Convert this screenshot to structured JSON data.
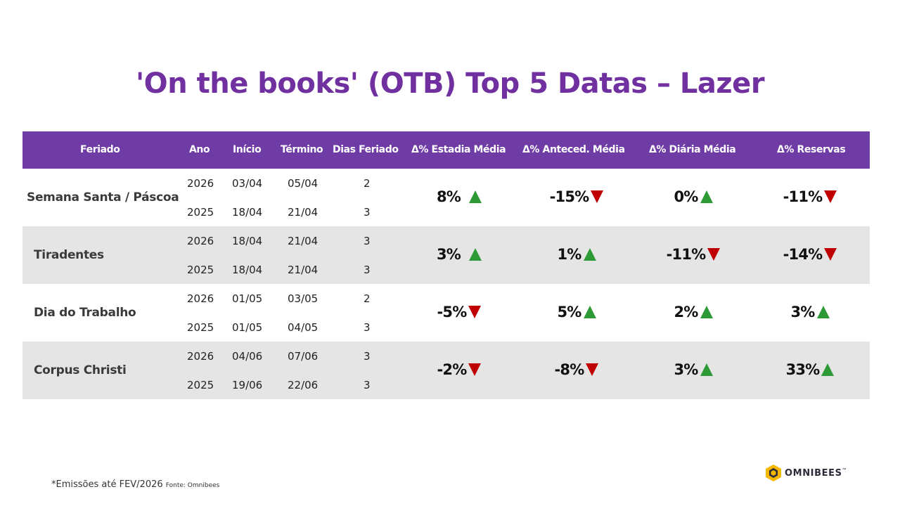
{
  "title": "'On the books' (OTB) Top 5 Datas – Lazer",
  "table": {
    "headers": [
      "Feriado",
      "Ano",
      "Início",
      "Término",
      "Dias Feriado",
      "Δ% Estadia Média",
      "Δ%  Anteced. Média",
      "Δ% Diária Média",
      "Δ% Reservas"
    ],
    "rows": [
      {
        "feriado": "Semana Santa / Páscoa",
        "years": [
          {
            "ano": "2026",
            "inicio": "03/04",
            "termino": "05/04",
            "dias": "2"
          },
          {
            "ano": "2025",
            "inicio": "18/04",
            "termino": "21/04",
            "dias": "3"
          }
        ],
        "deltas": [
          {
            "value": "8%",
            "trend": "up"
          },
          {
            "value": "-15%",
            "trend": "down"
          },
          {
            "value": "0%",
            "trend": "up"
          },
          {
            "value": "-11%",
            "trend": "down"
          }
        ]
      },
      {
        "feriado": "Tiradentes",
        "years": [
          {
            "ano": "2026",
            "inicio": "18/04",
            "termino": "21/04",
            "dias": "3"
          },
          {
            "ano": "2025",
            "inicio": "18/04",
            "termino": "21/04",
            "dias": "3"
          }
        ],
        "deltas": [
          {
            "value": "3%",
            "trend": "up"
          },
          {
            "value": "1%",
            "trend": "up"
          },
          {
            "value": "-11%",
            "trend": "down"
          },
          {
            "value": "-14%",
            "trend": "down"
          }
        ]
      },
      {
        "feriado": "Dia do Trabalho",
        "years": [
          {
            "ano": "2026",
            "inicio": "01/05",
            "termino": "03/05",
            "dias": "2"
          },
          {
            "ano": "2025",
            "inicio": "01/05",
            "termino": "04/05",
            "dias": "3"
          }
        ],
        "deltas": [
          {
            "value": "-5%",
            "trend": "down"
          },
          {
            "value": "5%",
            "trend": "up"
          },
          {
            "value": "2%",
            "trend": "up"
          },
          {
            "value": "3%",
            "trend": "up"
          }
        ]
      },
      {
        "feriado": "Corpus Christi",
        "years": [
          {
            "ano": "2026",
            "inicio": "04/06",
            "termino": "07/06",
            "dias": "3"
          },
          {
            "ano": "2025",
            "inicio": "19/06",
            "termino": "22/06",
            "dias": "3"
          }
        ],
        "deltas": [
          {
            "value": "-2%",
            "trend": "down"
          },
          {
            "value": "-8%",
            "trend": "down"
          },
          {
            "value": "3%",
            "trend": "up"
          },
          {
            "value": "33%",
            "trend": "up"
          }
        ]
      }
    ]
  },
  "footnote": {
    "note": "*Emissões até FEV/2026",
    "source": "Fonte: Omnibees"
  },
  "logo": {
    "text": "OMNIBEES",
    "tm": "™"
  },
  "colors": {
    "title": "#7030a0",
    "header_bg": "#6f3ca6",
    "alt_row": "#e6e5e6",
    "up": "#2e9a36",
    "down": "#c00000",
    "logo_yellow": "#f5b800"
  }
}
